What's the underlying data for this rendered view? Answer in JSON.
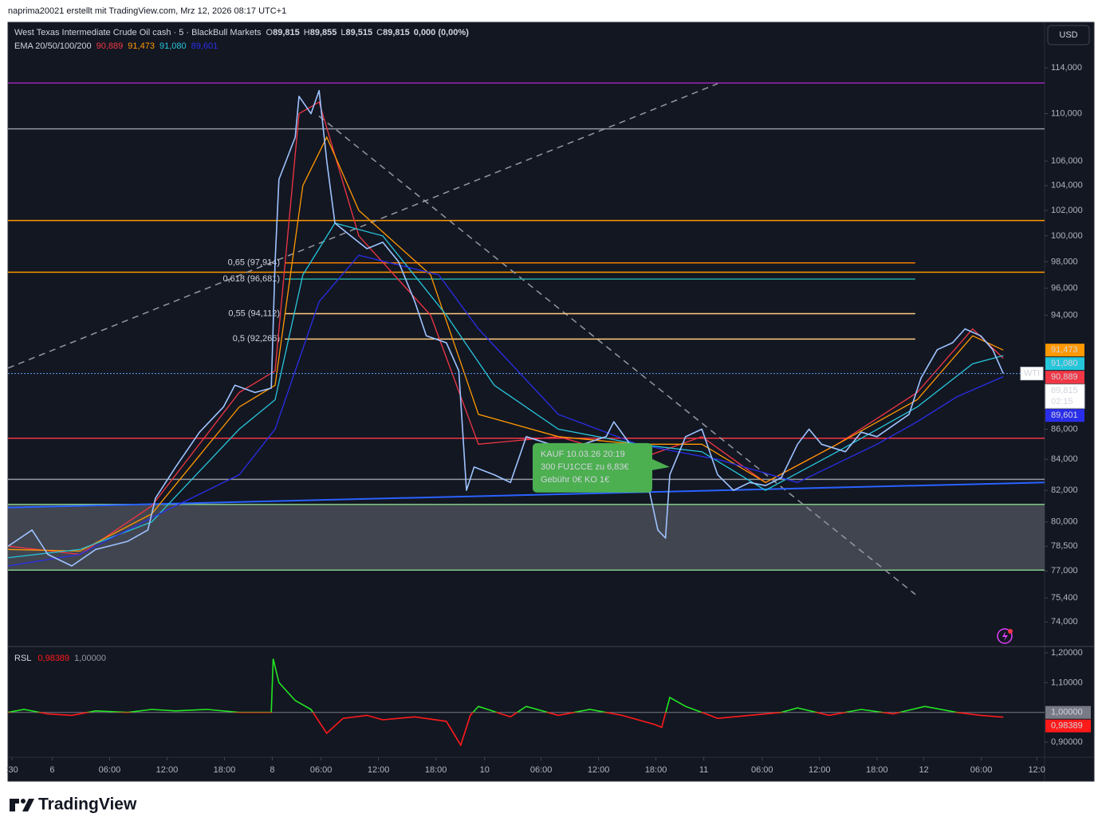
{
  "header": {
    "attribution": "naprima20021 erstellt mit TradingView.com, Mrz 12, 2026 08:17 UTC+1"
  },
  "chart_data": {
    "type": "line",
    "title": "West Texas Intermediate Crude Oil cash · 5 · BlackBull Markets",
    "ohlc": [
      {
        "key": "O",
        "value": "89,815"
      },
      {
        "key": "H",
        "value": "89,855"
      },
      {
        "key": "L",
        "value": "89,515"
      },
      {
        "key": "C",
        "value": "89,815"
      }
    ],
    "change": "0,000 (0,00%)",
    "indicator": "EMA 20/50/100/200",
    "currency": "USD",
    "symbol": "WTI",
    "last_price_label": "89,815",
    "countdown": "02:15",
    "log_scale": true,
    "xlim": [
      -0.42,
      107.92
    ],
    "xticks": [
      {
        "value": 0,
        "label": ":30"
      },
      {
        "value": 4.2,
        "label": "6"
      },
      {
        "value": 10.2,
        "label": "06:00"
      },
      {
        "value": 16.2,
        "label": "12:00"
      },
      {
        "value": 22.2,
        "label": "18:00"
      },
      {
        "value": 27.2,
        "label": "8"
      },
      {
        "value": 32.3,
        "label": "06:00"
      },
      {
        "value": 38.3,
        "label": "12:00"
      },
      {
        "value": 44.3,
        "label": "18:00"
      },
      {
        "value": 49.4,
        "label": "10"
      },
      {
        "value": 55.3,
        "label": "06:00"
      },
      {
        "value": 61.3,
        "label": "12:00"
      },
      {
        "value": 67.3,
        "label": "18:00"
      },
      {
        "value": 72.3,
        "label": "11"
      },
      {
        "value": 78.4,
        "label": "06:00"
      },
      {
        "value": 84.4,
        "label": "12:00"
      },
      {
        "value": 90.4,
        "label": "18:00"
      },
      {
        "value": 95.3,
        "label": "12"
      },
      {
        "value": 101.3,
        "label": "06:00"
      },
      {
        "value": 107.1,
        "label": "12:0"
      }
    ],
    "ylim": [
      72.64,
      118.12
    ],
    "yticks": [
      {
        "value": 114,
        "label": "114,000"
      },
      {
        "value": 110,
        "label": "110,000"
      },
      {
        "value": 106,
        "label": "106,000"
      },
      {
        "value": 104,
        "label": "104,000"
      },
      {
        "value": 102,
        "label": "102,000"
      },
      {
        "value": 100,
        "label": "100,000"
      },
      {
        "value": 98,
        "label": "98,000"
      },
      {
        "value": 96,
        "label": "96,000"
      },
      {
        "value": 94,
        "label": "94,000"
      },
      {
        "value": 86,
        "label": "86,000"
      },
      {
        "value": 84,
        "label": "84,000"
      },
      {
        "value": 82,
        "label": "82,000"
      },
      {
        "value": 80,
        "label": "80,000"
      },
      {
        "value": 78.5,
        "label": "78,500"
      },
      {
        "value": 77,
        "label": "77,000"
      },
      {
        "value": 75.4,
        "label": "75,400"
      },
      {
        "value": 74,
        "label": "74,000"
      }
    ],
    "x": [
      -0.4,
      2.1,
      3.75,
      6.25,
      8.75,
      12.1,
      14.2,
      15,
      17.1,
      19.6,
      22.1,
      23.3,
      25.4,
      27.1,
      27.5,
      27.9,
      29.6,
      30,
      31.25,
      32.1,
      32.9,
      33.75,
      35.4,
      37.1,
      38.75,
      40.4,
      42.1,
      43.3,
      45.4,
      46.7,
      47.5,
      48.3,
      50.4,
      52.1,
      53.75,
      56.25,
      58.75,
      62.1,
      62.9,
      64.6,
      66.25,
      67.5,
      68.3,
      68.75,
      70.4,
      72.1,
      73.75,
      75.4,
      77.1,
      78.75,
      80.4,
      82.1,
      83.3,
      84.6,
      87.1,
      88.75,
      90.4,
      93.75,
      95,
      96.7,
      98.3,
      99.6,
      101.25,
      102.5,
      103.6
    ],
    "series": [
      {
        "name": "WTI",
        "color": "#9ec3ff",
        "values": [
          78.5,
          79.5,
          78,
          77.3,
          78.3,
          78.8,
          79.5,
          81.5,
          83.5,
          85.8,
          87.5,
          89,
          88.5,
          88.8,
          98,
          104.5,
          108,
          111.5,
          110,
          112,
          106,
          101,
          100,
          99,
          99.5,
          98,
          95,
          92.5,
          92,
          90,
          82,
          83.5,
          83,
          82.5,
          85.5,
          85,
          84.8,
          85.5,
          86.5,
          85,
          83,
          79.5,
          79,
          83,
          85.5,
          86,
          83,
          82,
          82.5,
          82.3,
          82.8,
          85,
          86,
          85,
          84.5,
          85.8,
          85.5,
          87,
          89.5,
          91.5,
          92,
          93,
          92.5,
          91.5,
          89.815
        ]
      }
    ],
    "indicator_series": [
      {
        "color": "#f23645",
        "value_label": "90,889",
        "x": [
          -0.4,
          7.1,
          14.6,
          23.75,
          27.5,
          30,
          32.1,
          36.25,
          43.75,
          48.75,
          57.1,
          65.4,
          72.1,
          78.75,
          86.25,
          94.6,
          100.4,
          103.6
        ],
        "values": [
          78.5,
          78,
          81,
          88.5,
          90,
          110,
          111,
          100,
          94,
          85,
          85.5,
          84,
          85.5,
          82.5,
          85,
          88.5,
          93,
          90.889
        ]
      },
      {
        "color": "#ff9800",
        "value_label": "91,473",
        "x": [
          -0.4,
          7.1,
          14.6,
          23.75,
          27.5,
          30.4,
          32.9,
          36.25,
          43.75,
          48.75,
          57.1,
          65.4,
          72.1,
          78.75,
          86.25,
          94.6,
          100.4,
          103.6
        ],
        "values": [
          78.3,
          78.2,
          80.5,
          87.5,
          89,
          104,
          108,
          102,
          97,
          87,
          85.5,
          85,
          85,
          82.5,
          85,
          88,
          92.5,
          91.473
        ]
      },
      {
        "color": "#26c6da",
        "value_label": "91,080",
        "x": [
          -0.4,
          7.1,
          14.6,
          23.75,
          27.5,
          30.4,
          33.75,
          38.75,
          45.4,
          50.4,
          57.1,
          65.4,
          72.1,
          78.75,
          86.25,
          94.6,
          100.4,
          103.6
        ],
        "values": [
          77.8,
          78.3,
          80,
          86,
          88,
          97,
          101,
          100,
          94,
          89,
          86,
          85,
          84.5,
          82,
          84.5,
          87.5,
          90.5,
          91.08
        ]
      },
      {
        "color": "#2a2eea",
        "value_label": "89,601",
        "x": [
          -0.4,
          7.1,
          15.4,
          23.75,
          27.5,
          32.1,
          36.25,
          44.6,
          48.75,
          57.1,
          65.4,
          73.75,
          82.1,
          90.4,
          94.6,
          98.75,
          103.6
        ],
        "values": [
          77.3,
          78,
          80.5,
          83,
          86,
          95,
          98.5,
          97,
          93,
          87,
          85,
          84,
          82.5,
          85,
          86.5,
          88.2,
          89.601
        ]
      }
    ],
    "levels": [
      {
        "value": 112.66,
        "color": "#9c27b0"
      },
      {
        "value": 108.7,
        "color": "#9598a1"
      },
      {
        "value": 101.2,
        "color": "#ff9800"
      },
      {
        "value": 97.2,
        "color": "#ff9800"
      },
      {
        "value": 85.4,
        "color": "#f23645"
      },
      {
        "value": 82.7,
        "color": "#9598a1"
      },
      {
        "value": 81.1,
        "color": "#81c784"
      },
      {
        "value": 77.05,
        "color": "#81c784"
      }
    ],
    "zone": [
      77.05,
      81.1
    ],
    "fib_levels": [
      {
        "value": 97.914,
        "label": "0,65 (97,914)",
        "color": "#f57c00"
      },
      {
        "value": 96.681,
        "label": "0,618 (96,681)",
        "color": "#26a69a"
      },
      {
        "value": 94.112,
        "label": "0,55 (94,112)",
        "color": "#ffcc80"
      },
      {
        "value": 92.266,
        "label": "0,5 (92,266)",
        "color": "#ffcc80"
      }
    ],
    "fib_x": [
      28.5,
      94.4
    ],
    "trendlines": [
      {
        "x": [
          -0.42,
          73.75
        ],
        "values": [
          90.2,
          112.6
        ],
        "color": "#9598a1",
        "dashed": true
      },
      {
        "x": [
          32.08,
          94.42
        ],
        "values": [
          109.8,
          75.6
        ],
        "color": "#9598a1",
        "dashed": true
      },
      {
        "x": [
          -0.42,
          107.92
        ],
        "values": [
          80.9,
          82.5
        ],
        "color": "#2962ff",
        "dashed": false
      }
    ],
    "annotation": {
      "lines": [
        "KAUF 10.03.26 20:19",
        "300 FU1CCE zu 6,83€",
        "Gebühr 0€ KO 1€"
      ],
      "x": 68.75,
      "value": 83.5,
      "color": "#4caf50"
    },
    "rsl": {
      "name": "RSL",
      "value_label": "0,98389",
      "ref": {
        "value": 1,
        "label": "1,00000"
      },
      "ylim": [
        0.8493,
        1.2187
      ],
      "yticks": [
        {
          "value": 1.2,
          "label": "1,20000"
        },
        {
          "value": 1.1,
          "label": "1,10000"
        },
        {
          "value": 0.9,
          "label": "0,90000"
        }
      ],
      "above_color": "#22e622",
      "below_color": "#ff1a1a",
      "x": [
        -0.4,
        1.25,
        3.75,
        6.25,
        8.75,
        12.1,
        14.6,
        17.1,
        20.4,
        23.75,
        27.1,
        27.3,
        27.9,
        29.6,
        31.25,
        32.9,
        34.6,
        37.1,
        38.75,
        42.1,
        45.4,
        46.9,
        47.9,
        48.75,
        52.1,
        53.75,
        57.1,
        60.4,
        63.75,
        67.1,
        67.9,
        68.75,
        70.4,
        72.1,
        73.75,
        77.1,
        80.4,
        82.1,
        85.4,
        88.75,
        92.1,
        95.4,
        98.75,
        101.25,
        103.6
      ],
      "values": [
        1.0,
        1.01,
        0.995,
        0.99,
        1.005,
        1.0,
        1.01,
        1.005,
        1.01,
        1.0,
        1.0,
        1.18,
        1.1,
        1.04,
        1.01,
        0.93,
        0.98,
        0.99,
        0.975,
        0.985,
        0.97,
        0.89,
        0.99,
        1.02,
        0.985,
        1.02,
        0.99,
        1.01,
        0.99,
        0.96,
        0.95,
        1.05,
        1.02,
        1.0,
        0.98,
        0.99,
        1.0,
        1.015,
        0.99,
        1.01,
        0.995,
        1.02,
        1.0,
        0.99,
        0.98389
      ]
    }
  },
  "footer": {
    "brand": "TradingView"
  }
}
